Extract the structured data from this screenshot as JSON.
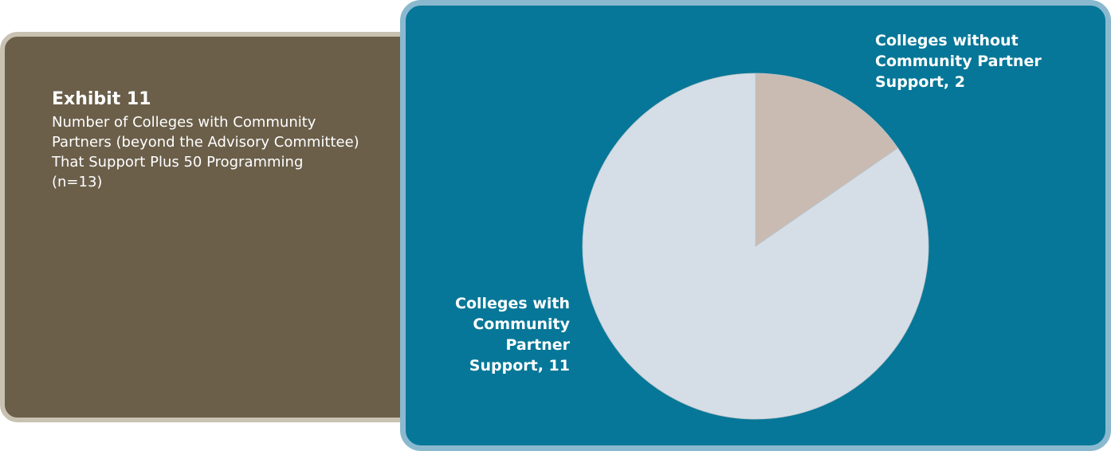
{
  "caption": {
    "exhibit": "Exhibit 11",
    "title": "Number of Colleges with Community Partners (beyond the Advisory Committee) That Support Plus 50 Programming",
    "n": "(n=13)"
  },
  "chart_data": {
    "type": "pie",
    "title": "Number of Colleges with Community Partners (beyond the Advisory Committee) That Support Plus 50 Programming",
    "n": 13,
    "slices": [
      {
        "label": "Colleges without\nCommunity Partner\nSupport, 2",
        "value": 2,
        "color": "#c9bbb2"
      },
      {
        "label": "Colleges with\nCommunity\nPartner\nSupport, 11",
        "value": 11,
        "color": "#d5dee6"
      }
    ],
    "start": "12 o'clock",
    "direction": "clockwise"
  },
  "colors": {
    "left_panel": "#6b5f4a",
    "left_border": "#c9c2b1",
    "right_panel": "#067798",
    "right_border": "#8ab9cf",
    "text": "#ffffff"
  }
}
